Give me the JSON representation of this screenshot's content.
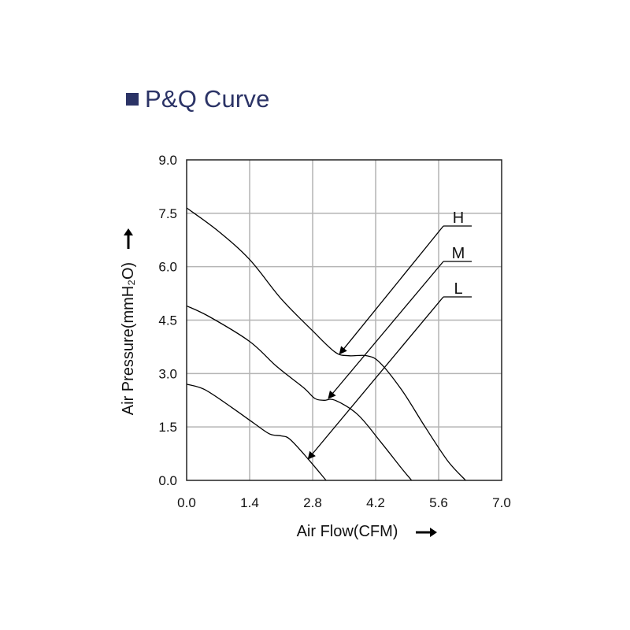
{
  "title": "P&Q Curve",
  "colors": {
    "title": "#2b3366",
    "grid": "#b4b4b4",
    "frame": "#222222",
    "curve": "#000000"
  },
  "chart_data": {
    "type": "line",
    "title": "P&Q Curve",
    "xlabel": "Air Flow(CFM)",
    "ylabel": "Air Pressure(mmH₂O)",
    "xlim": [
      0,
      7.0
    ],
    "ylim": [
      0,
      9.0
    ],
    "xticks": [
      "0.0",
      "1.4",
      "2.8",
      "4.2",
      "5.6",
      "7.0"
    ],
    "yticks": [
      "0.0",
      "1.5",
      "3.0",
      "4.5",
      "6.0",
      "7.5",
      "9.0"
    ],
    "grid": true,
    "series": [
      {
        "name": "H",
        "x": [
          0.0,
          0.7,
          1.4,
          2.1,
          2.8,
          3.3,
          3.6,
          4.0,
          4.3,
          4.8,
          5.3,
          5.8,
          6.2
        ],
        "y": [
          7.65,
          7.0,
          6.2,
          5.1,
          4.2,
          3.6,
          3.5,
          3.5,
          3.3,
          2.5,
          1.5,
          0.55,
          0.0
        ]
      },
      {
        "name": "M",
        "x": [
          0.0,
          0.5,
          1.4,
          2.0,
          2.6,
          2.85,
          3.05,
          3.3,
          3.8,
          4.3,
          4.8,
          5.0
        ],
        "y": [
          4.9,
          4.6,
          3.9,
          3.2,
          2.6,
          2.3,
          2.25,
          2.25,
          1.85,
          1.1,
          0.3,
          0.0
        ]
      },
      {
        "name": "L",
        "x": [
          0.0,
          0.4,
          1.0,
          1.5,
          1.85,
          2.1,
          2.3,
          2.7,
          3.1
        ],
        "y": [
          2.7,
          2.55,
          2.05,
          1.6,
          1.3,
          1.25,
          1.15,
          0.6,
          0.0
        ]
      }
    ],
    "annotations": [
      {
        "label": "H",
        "arrow_to": [
          3.4,
          3.55
        ]
      },
      {
        "label": "M",
        "arrow_to": [
          3.15,
          2.3
        ]
      },
      {
        "label": "L",
        "arrow_to": [
          2.7,
          0.6
        ]
      }
    ]
  }
}
